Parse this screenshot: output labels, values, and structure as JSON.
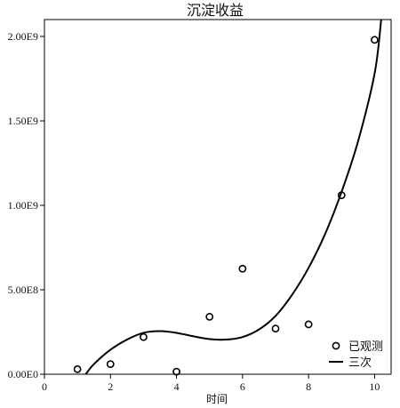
{
  "chart_data": {
    "type": "scatter",
    "title": "沉淀收益",
    "xlabel": "时间",
    "ylabel": "",
    "xlim": [
      0,
      10.5
    ],
    "ylim": [
      0,
      2100000000.0
    ],
    "x_ticks": [
      0,
      2,
      4,
      6,
      8,
      10
    ],
    "x_tick_labels": [
      "0",
      "2",
      "4",
      "6",
      "8",
      "10"
    ],
    "y_ticks": [
      0,
      500000000,
      1000000000,
      1500000000,
      2000000000
    ],
    "y_tick_labels": [
      "0.00E0",
      "5.00E8",
      "1.00E9",
      "1.50E9",
      "2.00E9"
    ],
    "grid": false,
    "legend_position": "bottom-right",
    "series": [
      {
        "name": "已观测",
        "kind": "points",
        "marker": "open-circle",
        "x": [
          1,
          2,
          3,
          4,
          5,
          6,
          7,
          8,
          9,
          10
        ],
        "y": [
          30000000,
          60000000,
          220000000,
          15000000,
          340000000,
          625000000,
          270000000,
          295000000,
          1060000000,
          1980000000
        ]
      },
      {
        "name": "三次",
        "kind": "fit-line",
        "color": "#000000",
        "x": [
          1.25,
          1.5,
          2,
          2.5,
          3,
          3.5,
          4,
          4.5,
          5,
          5.5,
          6,
          6.5,
          7,
          7.5,
          8,
          8.5,
          9,
          9.5,
          10,
          10.2
        ],
        "y": [
          0,
          60000000,
          145000000,
          205000000,
          245000000,
          255000000,
          245000000,
          225000000,
          208000000,
          205000000,
          220000000,
          265000000,
          345000000,
          470000000,
          630000000,
          830000000,
          1080000000,
          1380000000,
          1780000000,
          2100000000
        ]
      }
    ]
  }
}
